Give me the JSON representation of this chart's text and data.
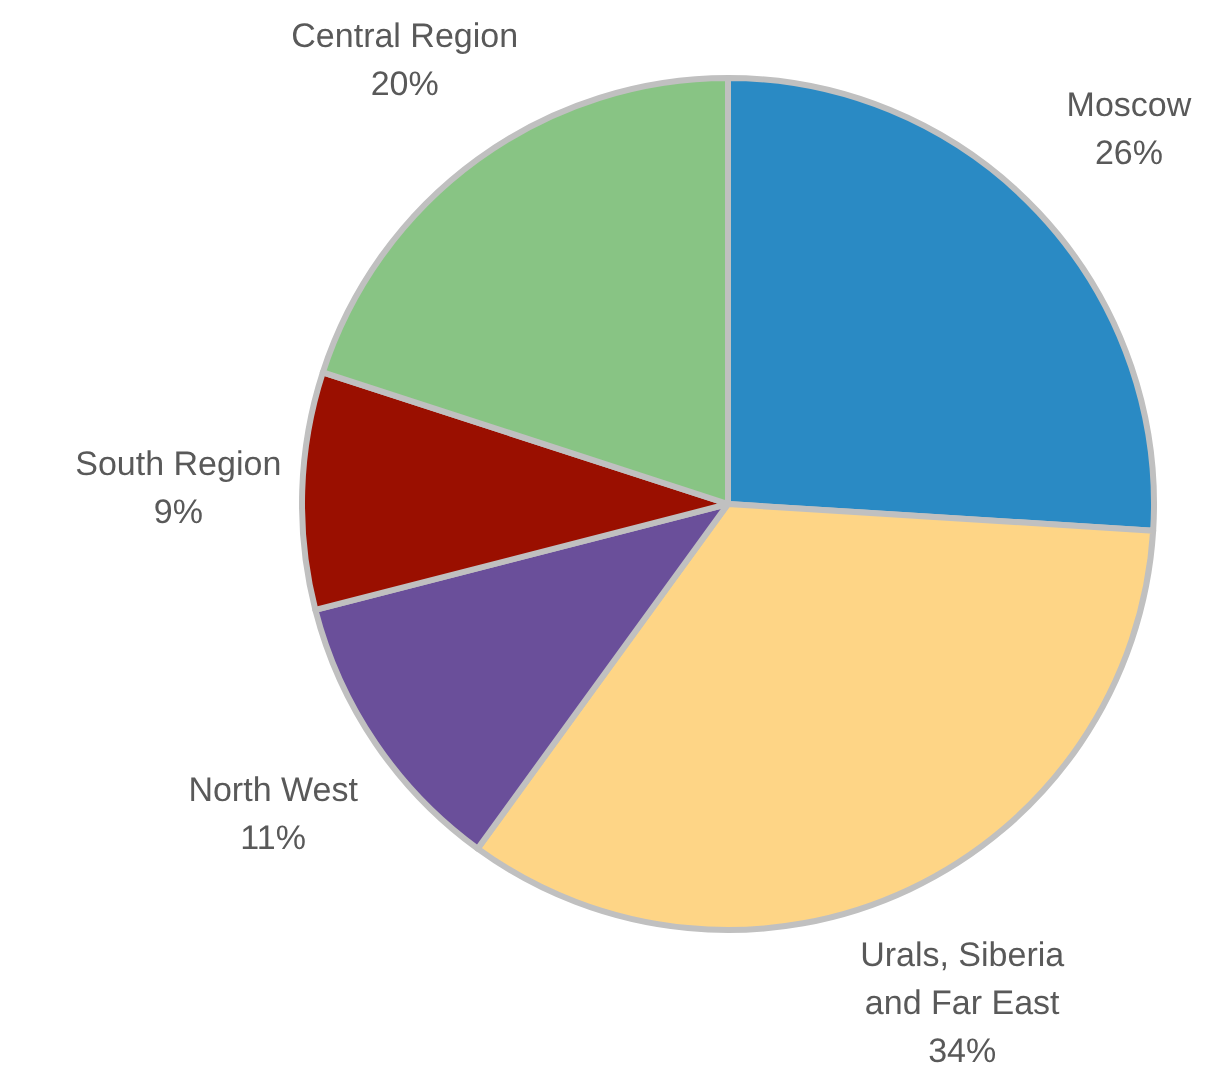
{
  "chart_data": {
    "type": "pie",
    "categories": [
      "Moscow",
      "Urals, Siberia and Far East",
      "North West",
      "South Region",
      "Central Region"
    ],
    "values": [
      26,
      34,
      11,
      9,
      20
    ],
    "value_labels": [
      "26%",
      "34%",
      "11%",
      "9%",
      "20%"
    ],
    "colors": [
      "#2a8ac4",
      "#fed586",
      "#6a4f9a",
      "#9a0f00",
      "#88c484"
    ]
  }
}
